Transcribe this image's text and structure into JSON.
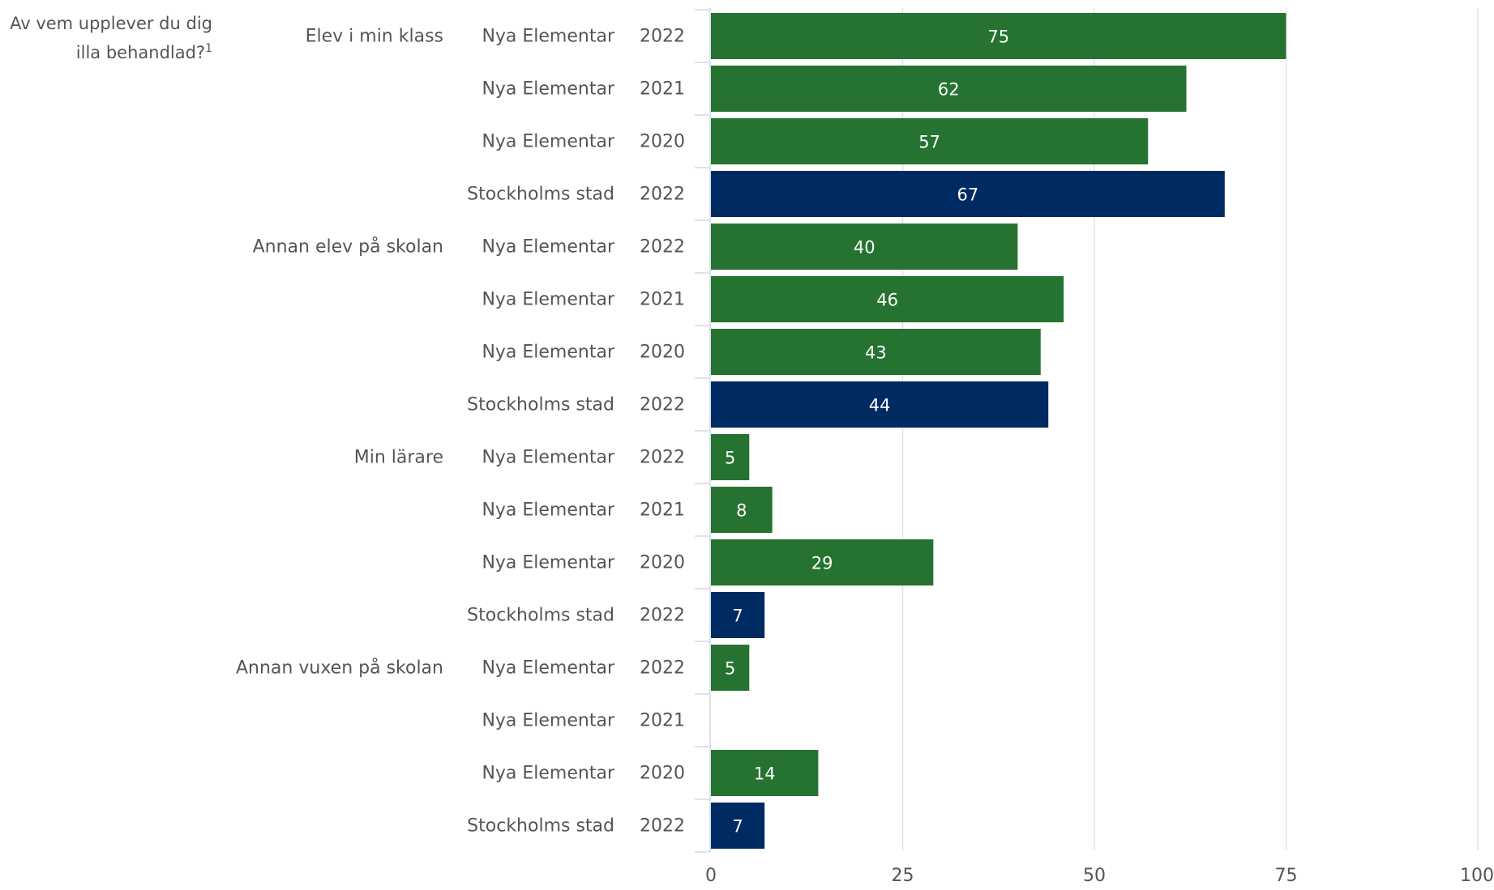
{
  "question_title": {
    "line1": "Av vem upplever du dig",
    "line2": "illa behandlad?",
    "footnote": "1"
  },
  "colors": {
    "nya_elementar": "#267331",
    "stockholms_stad": "#002a62",
    "grid": "#dde2ec",
    "text": "#555555",
    "value_text": "#ffffff"
  },
  "chart_data": {
    "type": "bar",
    "orientation": "horizontal",
    "title": "Av vem upplever du dig illa behandlad?",
    "xlim": [
      0,
      100
    ],
    "xticks": [
      0,
      25,
      50,
      75,
      100
    ],
    "grid": true,
    "rows": [
      {
        "group": "Elev i min klass",
        "unit": "Nya Elementar",
        "year": "2022",
        "value": 75,
        "label": "75"
      },
      {
        "group": "",
        "unit": "Nya Elementar",
        "year": "2021",
        "value": 62,
        "label": "62"
      },
      {
        "group": "",
        "unit": "Nya Elementar",
        "year": "2020",
        "value": 57,
        "label": "57"
      },
      {
        "group": "",
        "unit": "Stockholms stad",
        "year": "2022",
        "value": 67,
        "label": "67"
      },
      {
        "group": "Annan elev på skolan",
        "unit": "Nya Elementar",
        "year": "2022",
        "value": 40,
        "label": "40"
      },
      {
        "group": "",
        "unit": "Nya Elementar",
        "year": "2021",
        "value": 46,
        "label": "46"
      },
      {
        "group": "",
        "unit": "Nya Elementar",
        "year": "2020",
        "value": 43,
        "label": "43"
      },
      {
        "group": "",
        "unit": "Stockholms stad",
        "year": "2022",
        "value": 44,
        "label": "44"
      },
      {
        "group": "Min lärare",
        "unit": "Nya Elementar",
        "year": "2022",
        "value": 5,
        "label": "5"
      },
      {
        "group": "",
        "unit": "Nya Elementar",
        "year": "2021",
        "value": 8,
        "label": "8"
      },
      {
        "group": "",
        "unit": "Nya Elementar",
        "year": "2020",
        "value": 29,
        "label": "29"
      },
      {
        "group": "",
        "unit": "Stockholms stad",
        "year": "2022",
        "value": 7,
        "label": "7"
      },
      {
        "group": "Annan vuxen på skolan",
        "unit": "Nya Elementar",
        "year": "2022",
        "value": 5,
        "label": "5"
      },
      {
        "group": "",
        "unit": "Nya Elementar",
        "year": "2021",
        "value": null,
        "label": ""
      },
      {
        "group": "",
        "unit": "Nya Elementar",
        "year": "2020",
        "value": 14,
        "label": "14"
      },
      {
        "group": "",
        "unit": "Stockholms stad",
        "year": "2022",
        "value": 7,
        "label": "7"
      }
    ]
  }
}
